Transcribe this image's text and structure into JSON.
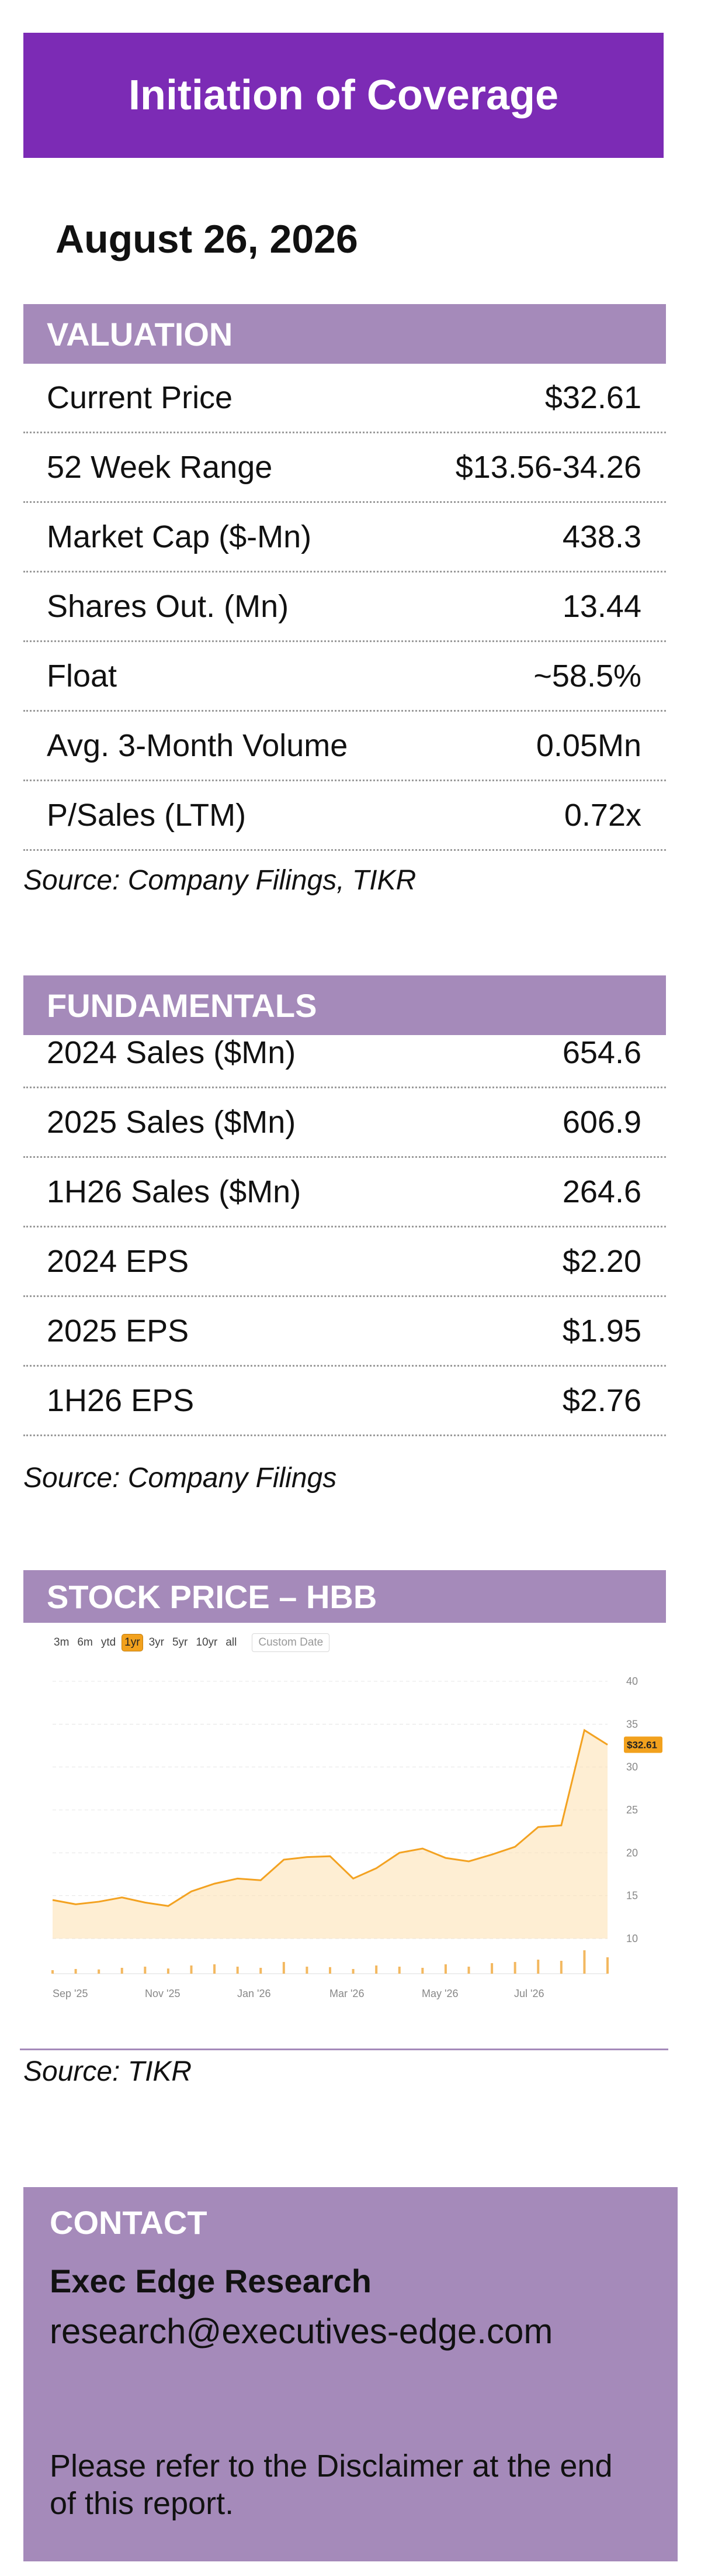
{
  "banner": {
    "title": "Initiation of Coverage"
  },
  "date": "August 26, 2026",
  "valuation": {
    "header": "VALUATION",
    "rows": [
      {
        "label": "Current Price",
        "value": "$32.61"
      },
      {
        "label": "52 Week Range",
        "value": "$13.56-34.26"
      },
      {
        "label": "Market Cap ($-Mn)",
        "value": "438.3"
      },
      {
        "label": "Shares Out. (Mn)",
        "value": "13.44"
      },
      {
        "label": "Float",
        "value": "~58.5%"
      },
      {
        "label": "Avg. 3-Month Volume",
        "value": "0.05Mn"
      },
      {
        "label": "P/Sales (LTM)",
        "value": "0.72x"
      }
    ],
    "source": "Source: Company Filings, TIKR"
  },
  "fundamentals": {
    "header": "FUNDAMENTALS",
    "rows": [
      {
        "label": "2024 Sales ($Mn)",
        "value": "654.6"
      },
      {
        "label": "2025 Sales ($Mn)",
        "value": "606.9"
      },
      {
        "label": "1H26 Sales ($Mn)",
        "value": "264.6"
      },
      {
        "label": "2024 EPS",
        "value": "$2.20"
      },
      {
        "label": "2025 EPS",
        "value": "$1.95"
      },
      {
        "label": "1H26 EPS",
        "value": "$2.76"
      }
    ],
    "source": "Source: Company Filings"
  },
  "stock": {
    "header": "STOCK PRICE – HBB",
    "ranges": [
      "3m",
      "6m",
      "ytd",
      "1yr",
      "3yr",
      "5yr",
      "10yr",
      "all"
    ],
    "active_range": "1yr",
    "custom_date": "Custom Date",
    "source": "Source: TIKR"
  },
  "chart_data": {
    "type": "line",
    "x": [
      "Sep '25",
      "Sep '25",
      "Oct '25",
      "Oct '25",
      "Nov '25",
      "Nov '25",
      "Dec '25",
      "Dec '25",
      "Jan '26",
      "Jan '26",
      "Feb '26",
      "Feb '26",
      "Mar '26",
      "Mar '26",
      "Apr '26",
      "Apr '26",
      "May '26",
      "May '26",
      "Jun '26",
      "Jun '26",
      "Jul '26",
      "Jul '26",
      "Aug '26",
      "Aug '26",
      "Aug '26"
    ],
    "values": [
      14.5,
      14.0,
      14.3,
      14.8,
      14.2,
      13.8,
      15.5,
      16.4,
      17.0,
      16.8,
      19.2,
      19.5,
      19.6,
      17.0,
      18.2,
      20.0,
      20.5,
      19.4,
      19.0,
      19.8,
      20.7,
      23.0,
      23.2,
      34.3,
      32.6
    ],
    "x_tick_labels": [
      "Sep '25",
      "Nov '25",
      "Jan '26",
      "Mar '26",
      "May '26",
      "Jul '26"
    ],
    "y_tick_labels": [
      "10",
      "15",
      "20",
      "25",
      "30",
      "35",
      "40"
    ],
    "ylim": [
      10,
      40
    ],
    "last_price_label": "$32.61",
    "line_color": "#f3a221",
    "fill_color": "#fde3b6",
    "grid": true,
    "volume_bars": [
      0.15,
      0.2,
      0.18,
      0.25,
      0.3,
      0.22,
      0.35,
      0.4,
      0.3,
      0.25,
      0.5,
      0.3,
      0.28,
      0.2,
      0.35,
      0.3,
      0.25,
      0.4,
      0.3,
      0.45,
      0.5,
      0.6,
      0.55,
      1.0,
      0.7
    ],
    "title": "",
    "xlabel": "",
    "ylabel": ""
  },
  "contact": {
    "heading": "CONTACT",
    "name": "Exec Edge Research",
    "email": "research@executives-edge.com",
    "note": "Please refer to the Disclaimer at the end of this report."
  }
}
